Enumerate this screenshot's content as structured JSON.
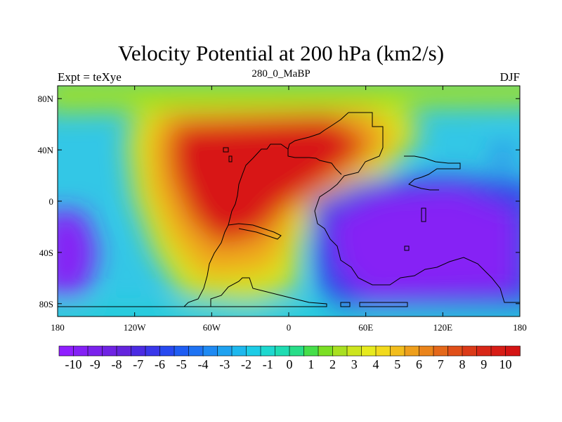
{
  "header": {
    "title": "Velocity Potential at 200 hPa (km2/s)",
    "left": "Expt = teXye",
    "center": "280_0_MaBP",
    "right": "DJF"
  },
  "chart_data": {
    "type": "heatmap",
    "title": "Velocity Potential at 200 hPa (km2/s)",
    "x_ticks": [
      "180",
      "120W",
      "60W",
      "0",
      "60E",
      "120E",
      "180"
    ],
    "y_ticks": [
      "80N",
      "40N",
      "0",
      "40S",
      "80S"
    ],
    "xlim": [
      -180,
      180
    ],
    "ylim": [
      -90,
      90
    ],
    "field_features": [
      {
        "kind": "max",
        "lon": -20,
        "lat": 20,
        "value": 10
      },
      {
        "kind": "min",
        "lon": 115,
        "lat": -20,
        "value": -10
      },
      {
        "kind": "min",
        "lon": -170,
        "lat": -25,
        "value": -10
      },
      {
        "kind": "min",
        "lon": 170,
        "lat": 38,
        "value": -4
      }
    ],
    "colorbar": {
      "levels": [
        "-10",
        "-9",
        "-8",
        "-7",
        "-6",
        "-5",
        "-4",
        "-3",
        "-2",
        "-1",
        "0",
        "1",
        "2",
        "3",
        "4",
        "5",
        "6",
        "7",
        "8",
        "9",
        "10"
      ],
      "colors": [
        "#8f1fff",
        "#8420f5",
        "#7a22ec",
        "#6f23e3",
        "#6424dd",
        "#4b2be3",
        "#3a37ea",
        "#2749f0",
        "#1f5df3",
        "#1f73f3",
        "#1f8af3",
        "#1fa2f0",
        "#1eb8ee",
        "#1dcce6",
        "#1ed8cf",
        "#1fdcb2",
        "#28dd88",
        "#46de4a",
        "#7bdf24",
        "#a9e021",
        "#cde51f",
        "#e7ea1e",
        "#f2da1d",
        "#f2bd1d",
        "#ee9f1c",
        "#ea841b",
        "#e4681a",
        "#e04f19",
        "#db3a18",
        "#d82717",
        "#d71d16",
        "#d41414"
      ]
    }
  }
}
